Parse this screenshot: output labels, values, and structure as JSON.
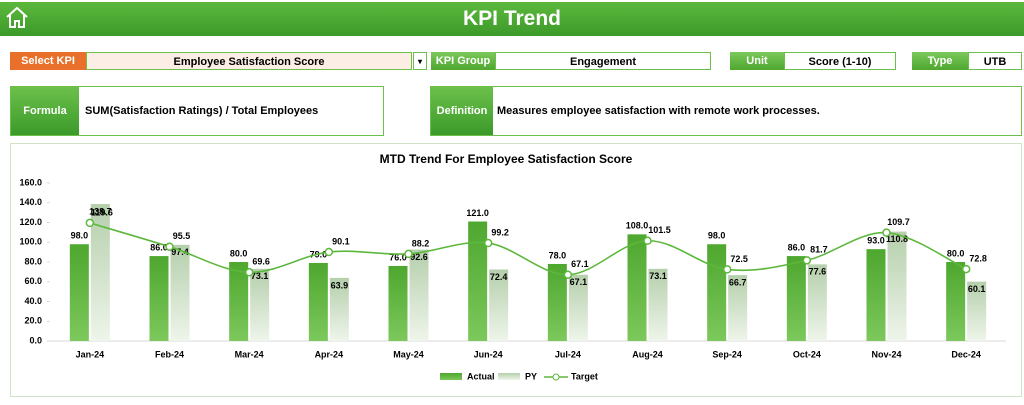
{
  "header": {
    "title": "KPI Trend"
  },
  "filters": {
    "kpi": {
      "label": "Select KPI",
      "value": "Employee Satisfaction Score"
    },
    "group": {
      "label": "KPI Group",
      "value": "Engagement"
    },
    "unit": {
      "label": "Unit",
      "value": "Score (1-10)"
    },
    "type": {
      "label": "Type",
      "value": "UTB"
    }
  },
  "info": {
    "formula": {
      "label": "Formula",
      "value": "SUM(Satisfaction Ratings) / Total Employees"
    },
    "definition": {
      "label": "Definition",
      "value": "Measures employee satisfaction with remote work processes."
    }
  },
  "chart_data": {
    "type": "bar",
    "title": "MTD Trend For Employee Satisfaction Score",
    "categories": [
      "Jan-24",
      "Feb-24",
      "Mar-24",
      "Apr-24",
      "May-24",
      "Jun-24",
      "Jul-24",
      "Aug-24",
      "Sep-24",
      "Oct-24",
      "Nov-24",
      "Dec-24"
    ],
    "series": [
      {
        "name": "Actual",
        "color": "#4ea72e",
        "values": [
          98,
          86,
          80,
          79,
          76,
          121,
          78,
          108,
          98,
          86,
          93,
          80
        ],
        "value_labels": [
          "98.0",
          "86.0",
          "80.0",
          "79.0",
          "76.0",
          "121.0",
          "78.0",
          "108.0",
          "98.0",
          "86.0",
          "93.0",
          "80.0"
        ]
      },
      {
        "name": "PY",
        "color": "#c5d9bd",
        "values": [
          138.7,
          97.4,
          73.1,
          63.9,
          92.6,
          72.4,
          67.1,
          73.1,
          66.7,
          77.6,
          110.8,
          60.1
        ]
      },
      {
        "name": "Target",
        "color": "#5cb83c",
        "values": [
          119.6,
          95.5,
          69.6,
          90.1,
          88.2,
          99.2,
          67.1,
          101.5,
          72.5,
          81.7,
          109.7,
          72.8
        ]
      }
    ],
    "ylim": [
      0,
      160
    ],
    "yticks": [
      {
        "value": 0,
        "label": "0.0"
      },
      {
        "value": 20,
        "label": "20.0"
      },
      {
        "value": 40,
        "label": "40.0"
      },
      {
        "value": 60,
        "label": "60.0"
      },
      {
        "value": 80,
        "label": "80.0"
      },
      {
        "value": 100,
        "label": "100.0"
      },
      {
        "value": 120,
        "label": "120.0"
      },
      {
        "value": 140,
        "label": "140.0"
      },
      {
        "value": 160,
        "label": "160.0"
      }
    ],
    "grid": false
  }
}
